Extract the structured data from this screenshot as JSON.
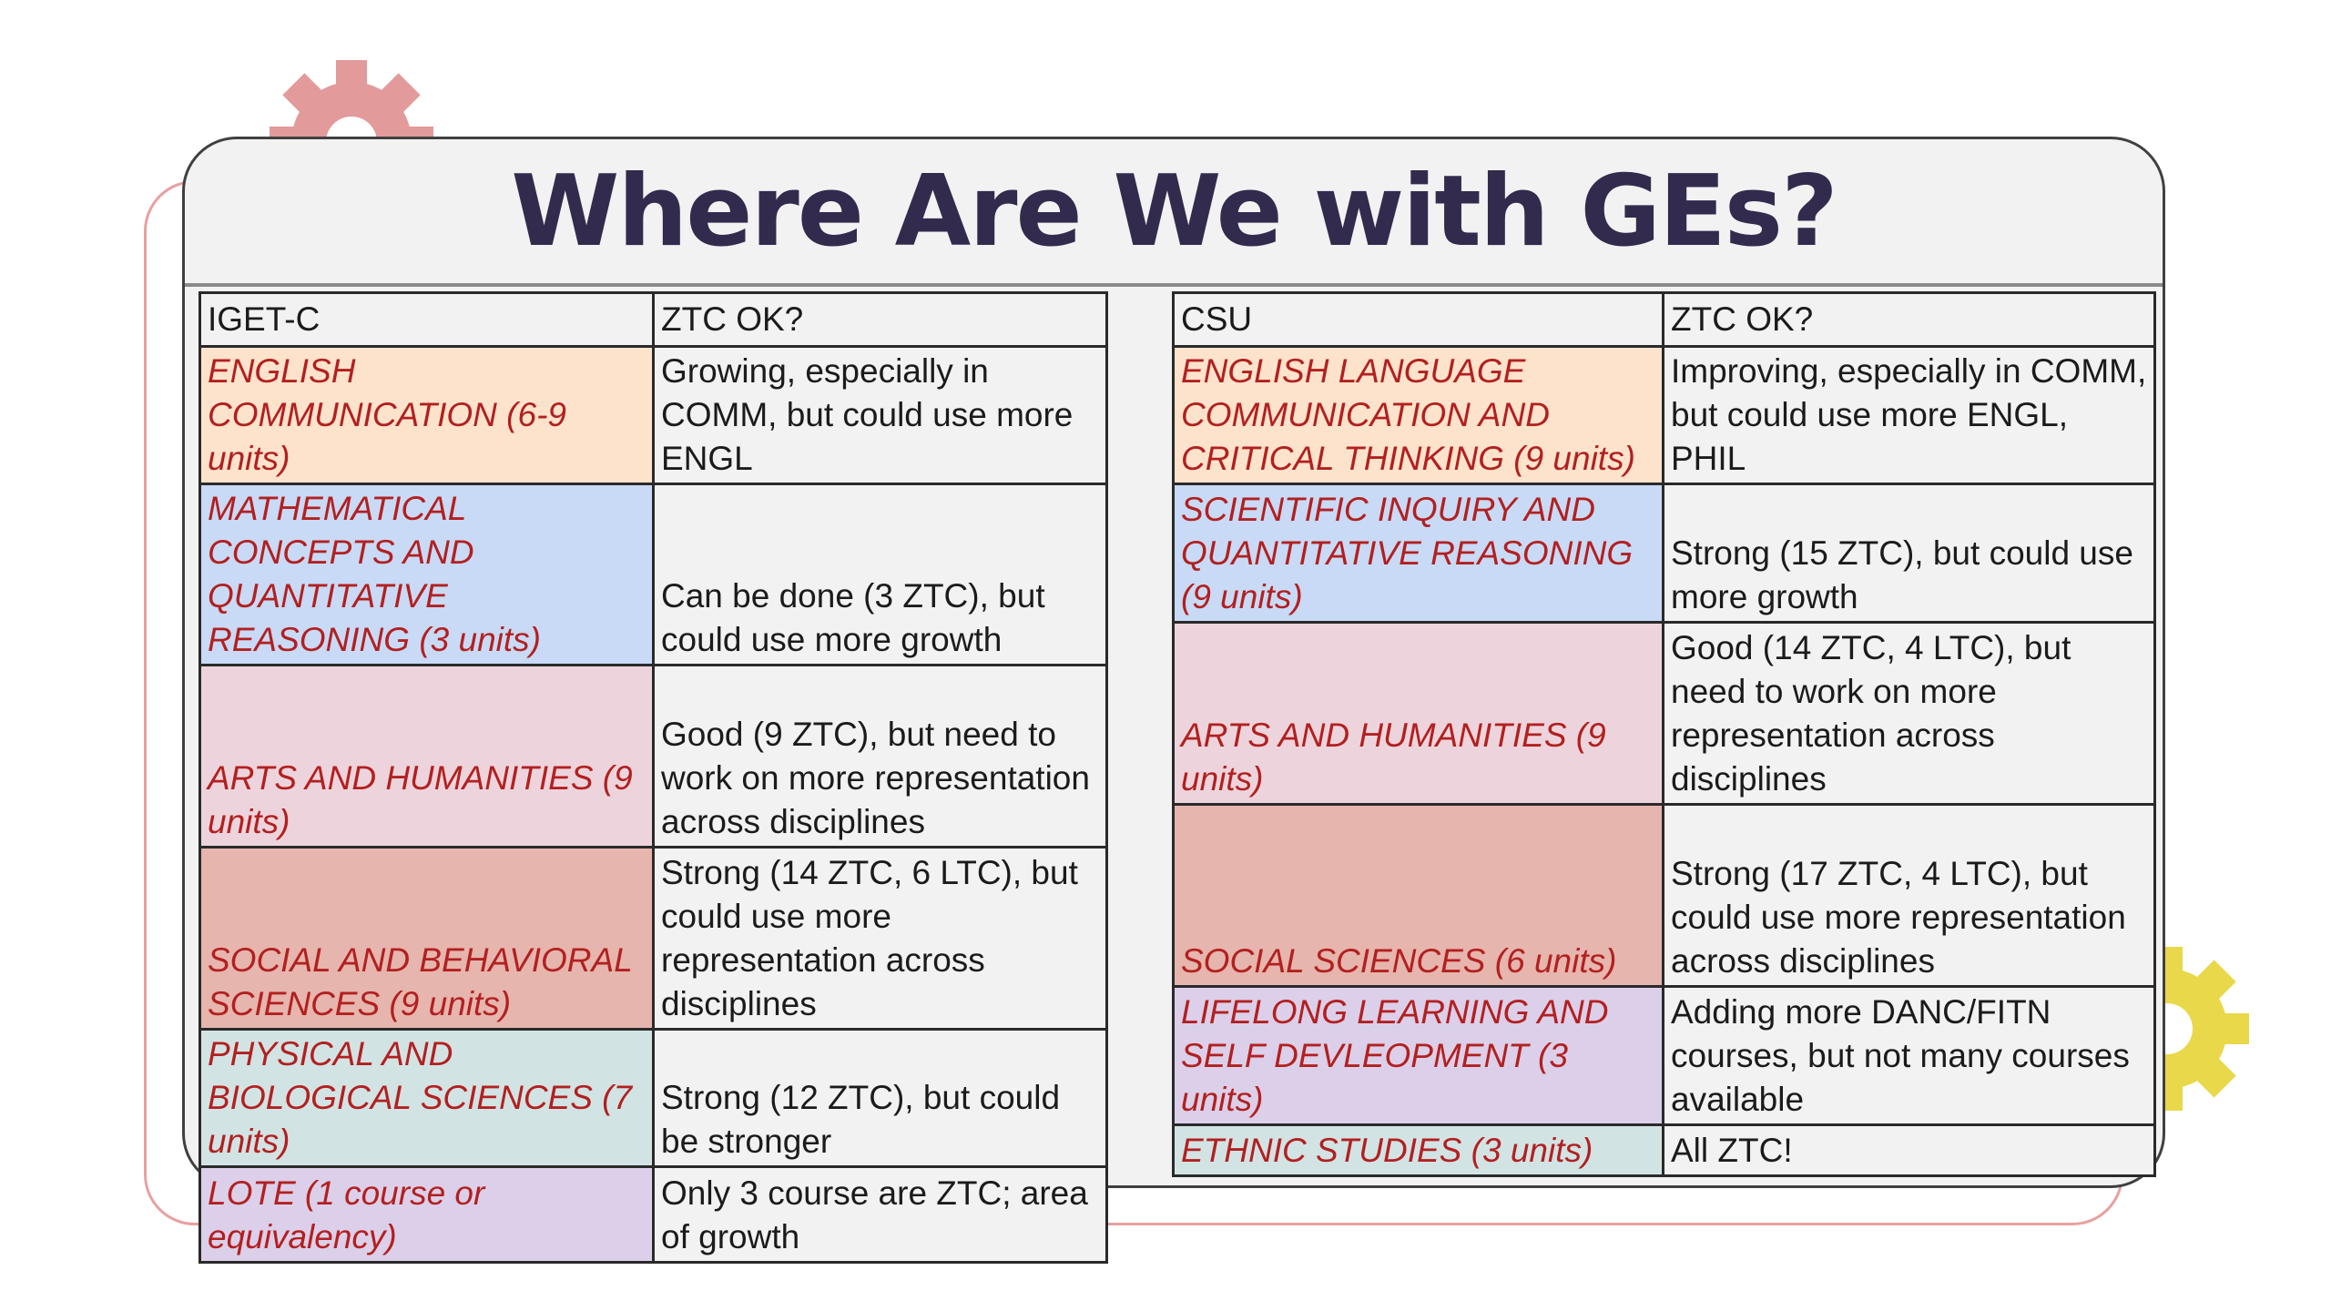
{
  "title": "Where Are We with GEs?",
  "colors": {
    "title": "#332b4d",
    "category_text": "#b22020",
    "gear_pink": "#e29a9a",
    "gear_yellow": "#e8d84a",
    "orange": "#fde3cb",
    "blue": "#c8daf6",
    "pink": "#edd4dc",
    "salmon": "#e6b5ad",
    "teal": "#d2e3e4",
    "purple": "#dccfe9"
  },
  "icons": [
    "gear-icon-pink",
    "gear-icon-yellow"
  ],
  "igetc": {
    "header": [
      "IGET-C",
      "ZTC OK?"
    ],
    "rows": [
      {
        "category": "ENGLISH COMMUNICATION (6-9 units)",
        "status": "Growing, especially in COMM, but could use more ENGL",
        "color": "orange"
      },
      {
        "category": "MATHEMATICAL CONCEPTS AND QUANTITATIVE REASONING (3 units)",
        "status": "Can be done (3 ZTC), but could use more growth",
        "color": "blue"
      },
      {
        "category": "ARTS AND HUMANITIES (9 units)",
        "status": "Good (9 ZTC), but need to work on more representation across disciplines",
        "color": "pink"
      },
      {
        "category": "SOCIAL AND BEHAVIORAL SCIENCES (9 units)",
        "status": "Strong (14 ZTC, 6 LTC), but could use more representation across disciplines",
        "color": "salmon"
      },
      {
        "category": "PHYSICAL AND BIOLOGICAL SCIENCES (7 units)",
        "status": "Strong (12 ZTC), but could be stronger",
        "color": "teal"
      },
      {
        "category": "LOTE (1 course or equivalency)",
        "status": "Only 3 course are ZTC; area of growth",
        "color": "purple"
      }
    ]
  },
  "csu": {
    "header": [
      "CSU",
      "ZTC OK?"
    ],
    "rows": [
      {
        "category": "ENGLISH LANGUAGE COMMUNICATION AND CRITICAL THINKING (9 units)",
        "status": "Improving, especially in COMM, but could use more ENGL, PHIL",
        "color": "orange"
      },
      {
        "category": "SCIENTIFIC INQUIRY AND QUANTITATIVE REASONING (9 units)",
        "status": "Strong (15 ZTC), but could use more growth",
        "color": "blue"
      },
      {
        "category": "ARTS AND HUMANITIES (9 units)",
        "status": "Good (14 ZTC, 4 LTC), but need to work on more representation across disciplines",
        "color": "pink"
      },
      {
        "category": "SOCIAL SCIENCES (6 units)",
        "status": "Strong (17 ZTC, 4 LTC), but could use more representation across disciplines",
        "color": "salmon"
      },
      {
        "category": "LIFELONG LEARNING AND SELF DEVLEOPMENT (3 units)",
        "status": "Adding more DANC/FITN courses, but not many courses available",
        "color": "purple"
      },
      {
        "category": "ETHNIC STUDIES (3 units)",
        "status": "All ZTC!",
        "color": "teal"
      }
    ]
  }
}
